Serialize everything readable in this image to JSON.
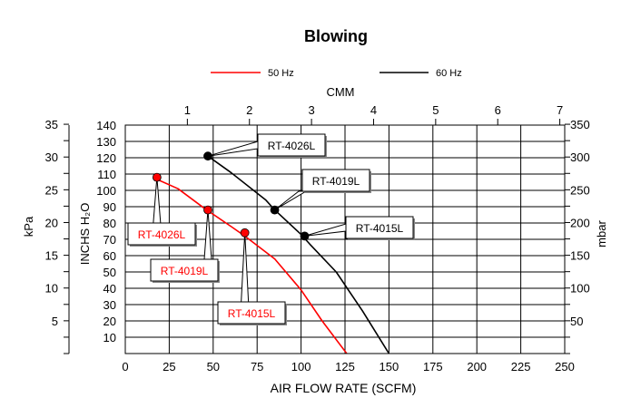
{
  "chart_data": {
    "type": "line",
    "title": "Blowing",
    "xlabel": "AIR FLOW RATE (SCFM)",
    "x_top_label": "CMM",
    "ylabel_inches": "INCHS H₂O",
    "ylabel_kpa": "kPa",
    "ylabel_mbar": "mbar",
    "xlim": [
      0,
      250
    ],
    "ylim": [
      0,
      140
    ],
    "x_ticks": [
      "0",
      "25",
      "50",
      "75",
      "100",
      "125",
      "150",
      "175",
      "200",
      "225",
      "250"
    ],
    "x_tick_values": [
      0,
      25,
      50,
      75,
      100,
      125,
      150,
      175,
      200,
      225,
      250
    ],
    "top_ticks": [
      "1",
      "2",
      "3",
      "4",
      "5",
      "6",
      "7"
    ],
    "top_tick_values": [
      1,
      2,
      3,
      4,
      5,
      6,
      7
    ],
    "top_scfm_per_unit": 35.3147,
    "y_ticks": [
      "10",
      "20",
      "30",
      "40",
      "50",
      "60",
      "70",
      "80",
      "90",
      "100",
      "110",
      "120",
      "130",
      "140"
    ],
    "y_tick_values": [
      10,
      20,
      30,
      40,
      50,
      60,
      70,
      80,
      90,
      100,
      110,
      120,
      130,
      140
    ],
    "kpa_ticks": [
      "5",
      "10",
      "15",
      "20",
      "25",
      "30",
      "35"
    ],
    "kpa_tick_values": [
      5,
      10,
      15,
      20,
      25,
      30,
      35
    ],
    "inh2o_per_kpa": 4.0146,
    "mbar_ticks": [
      "50",
      "100",
      "150",
      "200",
      "250",
      "300",
      "350"
    ],
    "mbar_tick_values": [
      50,
      100,
      150,
      200,
      250,
      300,
      350
    ],
    "inh2o_per_mbar": 0.40146,
    "grid": true,
    "legend_placement": "top-center",
    "series": [
      {
        "name": "50 Hz",
        "color": "#ff0000",
        "x": [
          17.5,
          30,
          45,
          60,
          68,
          85,
          100,
          112,
          126
        ],
        "y": [
          107,
          101,
          89,
          78,
          72,
          58,
          39,
          20,
          0
        ]
      },
      {
        "name": "60 Hz",
        "color": "#000000",
        "x": [
          47,
          60,
          80,
          85,
          100,
          105,
          120,
          135,
          150
        ],
        "y": [
          121,
          111,
          94,
          88,
          73,
          67,
          50,
          26,
          0
        ]
      }
    ],
    "annotations": [
      {
        "text": "RT-4026L",
        "color": "#ff0000",
        "x": 18,
        "y": 108
      },
      {
        "text": "RT-4019L",
        "color": "#ff0000",
        "x": 47,
        "y": 88
      },
      {
        "text": "RT-4015L",
        "color": "#ff0000",
        "x": 68,
        "y": 74
      },
      {
        "text": "RT-4026L",
        "color": "#000000",
        "x": 47,
        "y": 121
      },
      {
        "text": "RT-4019L",
        "color": "#000000",
        "x": 85,
        "y": 88
      },
      {
        "text": "RT-4015L",
        "color": "#000000",
        "x": 102,
        "y": 72
      }
    ]
  }
}
